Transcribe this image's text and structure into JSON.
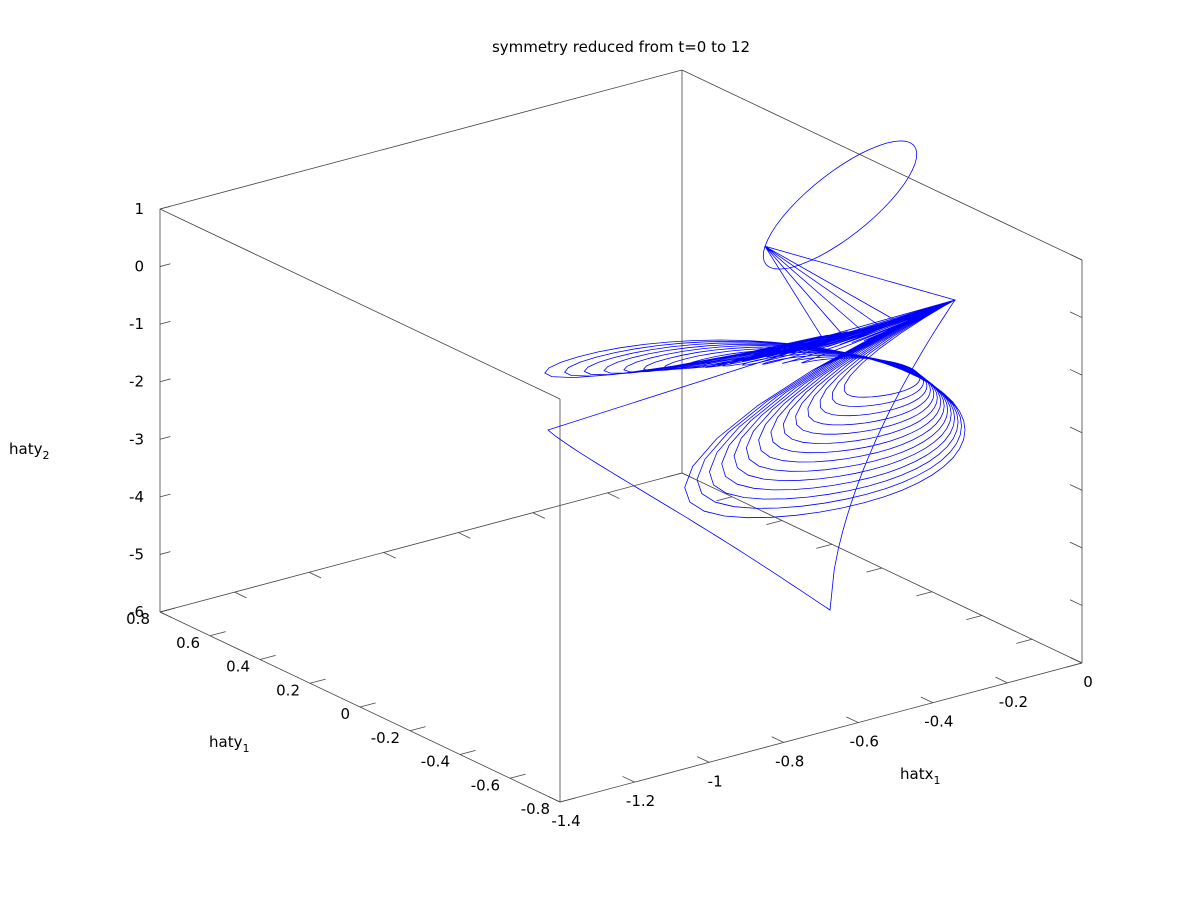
{
  "chart_data": {
    "type": "line3d",
    "title": "symmetry reduced from t=0 to 12",
    "xlabel": "hatx",
    "xlabel_sub": "1",
    "ylabel": "haty",
    "ylabel_sub": "1",
    "zlabel": "haty",
    "zlabel_sub": "2",
    "xlim": [
      -1.4,
      0
    ],
    "ylim": [
      -0.8,
      0.8
    ],
    "zlim": [
      -6,
      1
    ],
    "x_ticks": [
      "-1.4",
      "-1.2",
      "-1",
      "-0.8",
      "-0.6",
      "-0.4",
      "-0.2",
      "0"
    ],
    "y_ticks": [
      "-0.8",
      "-0.6",
      "-0.4",
      "-0.2",
      "0",
      "0.2",
      "0.4",
      "0.6",
      "0.8"
    ],
    "z_ticks": [
      "-6",
      "-5",
      "-4",
      "-3",
      "-2",
      "-1",
      "0",
      "1"
    ],
    "grid": false,
    "border": "box",
    "series": [
      {
        "color": "#0000ff",
        "t_range": [
          0,
          12
        ]
      }
    ]
  }
}
